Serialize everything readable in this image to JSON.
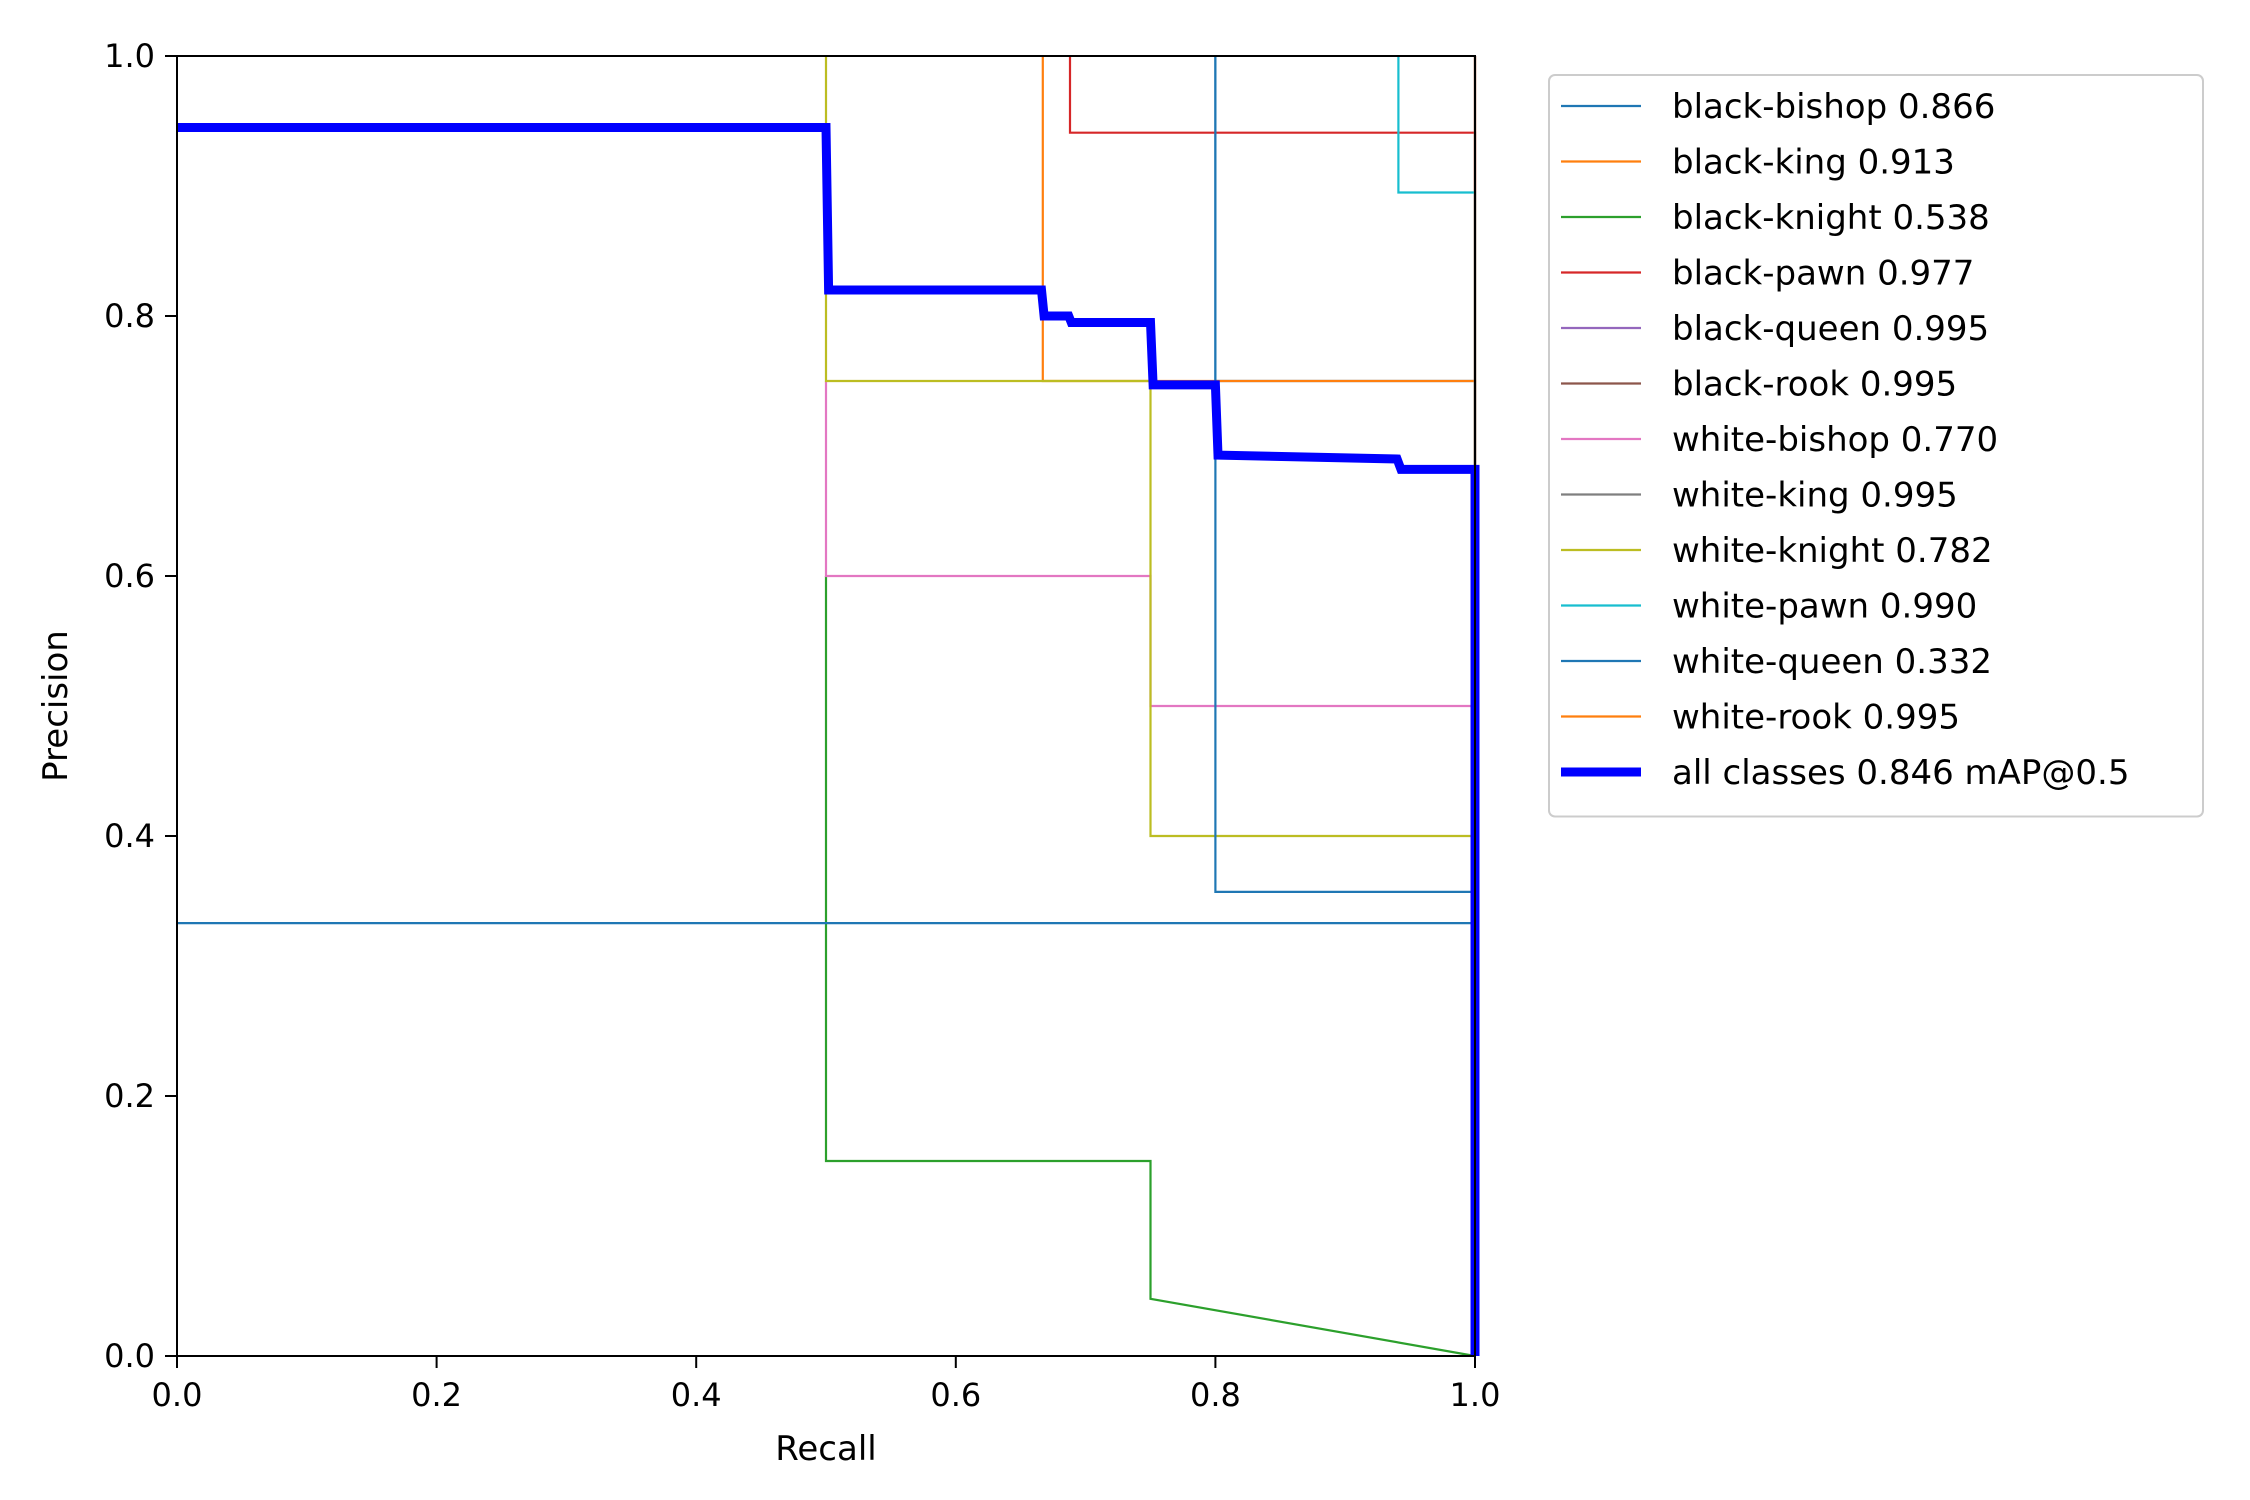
{
  "chart_data": {
    "type": "line",
    "title": "",
    "xlabel": "Recall",
    "ylabel": "Precision",
    "xlim": [
      0,
      1
    ],
    "ylim": [
      0,
      1
    ],
    "xticks": [
      "0.0",
      "0.2",
      "0.4",
      "0.6",
      "0.8",
      "1.0"
    ],
    "yticks": [
      "0.0",
      "0.2",
      "0.4",
      "0.6",
      "0.8",
      "1.0"
    ],
    "grid": false,
    "legend_position": "outside-right-top",
    "series": [
      {
        "name": "black-bishop 0.866",
        "color": "#1f77b4",
        "points": [
          [
            0.8,
            1.0
          ],
          [
            0.8,
            0.75
          ],
          [
            1.0,
            0.75
          ],
          [
            1.0,
            0.0
          ]
        ]
      },
      {
        "name": "black-king 0.913",
        "color": "#ff7f0e",
        "points": [
          [
            0.667,
            1.0
          ],
          [
            0.667,
            0.75
          ],
          [
            1.0,
            0.75
          ],
          [
            1.0,
            0.0
          ]
        ]
      },
      {
        "name": "black-knight 0.538",
        "color": "#2ca02c",
        "points": [
          [
            0.5,
            0.6
          ],
          [
            0.5,
            0.15
          ],
          [
            0.75,
            0.15
          ],
          [
            0.75,
            0.044
          ],
          [
            1.0,
            0.0
          ]
        ]
      },
      {
        "name": "black-pawn 0.977",
        "color": "#d62728",
        "points": [
          [
            0.688,
            1.0
          ],
          [
            0.688,
            0.941
          ],
          [
            1.0,
            0.941
          ],
          [
            1.0,
            0.0
          ]
        ]
      },
      {
        "name": "black-queen 0.995",
        "color": "#9467bd",
        "points": [
          [
            1.0,
            1.0
          ],
          [
            1.0,
            0.0
          ]
        ]
      },
      {
        "name": "black-rook 0.995",
        "color": "#8c564b",
        "points": [
          [
            1.0,
            1.0
          ],
          [
            1.0,
            0.0
          ]
        ]
      },
      {
        "name": "white-bishop 0.770",
        "color": "#e377c2",
        "points": [
          [
            0.5,
            0.75
          ],
          [
            0.5,
            0.6
          ],
          [
            0.75,
            0.6
          ],
          [
            0.75,
            0.5
          ],
          [
            1.0,
            0.5
          ],
          [
            1.0,
            0.0
          ]
        ]
      },
      {
        "name": "white-king 0.995",
        "color": "#7f7f7f",
        "points": [
          [
            1.0,
            1.0
          ],
          [
            1.0,
            0.0
          ]
        ]
      },
      {
        "name": "white-knight 0.782",
        "color": "#bcbd22",
        "points": [
          [
            0.5,
            1.0
          ],
          [
            0.5,
            0.75
          ],
          [
            0.75,
            0.75
          ],
          [
            0.75,
            0.4
          ],
          [
            1.0,
            0.4
          ],
          [
            1.0,
            0.0
          ]
        ]
      },
      {
        "name": "white-pawn 0.990",
        "color": "#17becf",
        "points": [
          [
            0.941,
            1.0
          ],
          [
            0.941,
            0.895
          ],
          [
            1.0,
            0.895
          ],
          [
            1.0,
            0.0
          ]
        ]
      },
      {
        "name": "white-queen 0.332",
        "color": "#1f77b4",
        "points": [
          [
            0.0,
            0.333
          ],
          [
            1.0,
            0.333
          ],
          [
            1.0,
            0.0
          ]
        ],
        "extra": [
          [
            0.8,
            1.0
          ],
          [
            0.8,
            0.357
          ],
          [
            1.0,
            0.357
          ]
        ]
      },
      {
        "name": "white-rook 0.995",
        "color": "#ff7f0e",
        "points": [
          [
            1.0,
            1.0
          ],
          [
            1.0,
            0.0
          ]
        ]
      },
      {
        "name": "all classes 0.846 mAP@0.5",
        "color": "#0000ff",
        "bold": true,
        "points": [
          [
            0.0,
            0.945
          ],
          [
            0.5,
            0.945
          ],
          [
            0.502,
            0.82
          ],
          [
            0.666,
            0.82
          ],
          [
            0.668,
            0.8
          ],
          [
            0.687,
            0.8
          ],
          [
            0.689,
            0.795
          ],
          [
            0.75,
            0.795
          ],
          [
            0.752,
            0.747
          ],
          [
            0.8,
            0.747
          ],
          [
            0.802,
            0.693
          ],
          [
            0.94,
            0.69
          ],
          [
            0.943,
            0.682
          ],
          [
            1.0,
            0.682
          ],
          [
            1.0,
            0.0
          ]
        ]
      }
    ]
  }
}
